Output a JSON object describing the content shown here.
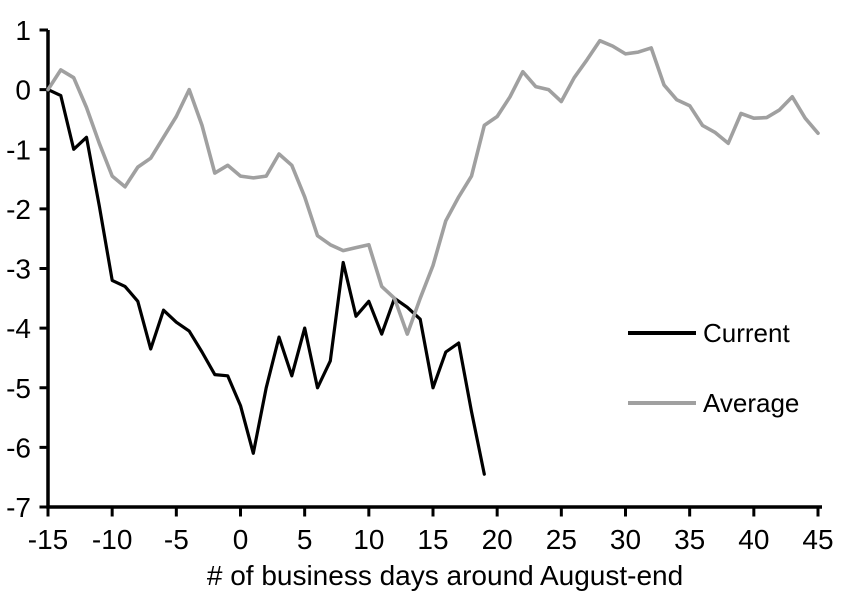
{
  "chart_data": {
    "type": "line",
    "title": "",
    "xlabel": "# of business days around August-end",
    "ylabel": "",
    "xlim": [
      -15,
      45
    ],
    "ylim": [
      -7,
      1
    ],
    "x_ticks": [
      -15,
      -10,
      -5,
      0,
      5,
      10,
      15,
      20,
      25,
      30,
      35,
      40,
      45
    ],
    "y_ticks": [
      1,
      0,
      -1,
      -2,
      -3,
      -4,
      -5,
      -6,
      -7
    ],
    "grid": false,
    "legend_position": "right-middle",
    "axis_color": "#000000",
    "series": [
      {
        "name": "Current",
        "color": "#000000",
        "x_start": -15,
        "x_step": 1,
        "values": [
          0,
          -0.1,
          -1,
          -0.8,
          -1.95,
          -3.2,
          -3.3,
          -3.55,
          -4.35,
          -3.7,
          -3.9,
          -4.05,
          -4.4,
          -4.78,
          -4.8,
          -5.3,
          -6.1,
          -5,
          -4.15,
          -4.8,
          -4,
          -5,
          -4.55,
          -2.9,
          -3.8,
          -3.55,
          -4.1,
          -3.5,
          -3.65,
          -3.85,
          -5,
          -4.4,
          -4.25,
          -5.4,
          -6.45
        ]
      },
      {
        "name": "Average",
        "color": "#a0a0a0",
        "x_start": -15,
        "x_step": 1,
        "values": [
          0,
          0.33,
          0.2,
          -0.3,
          -0.9,
          -1.45,
          -1.63,
          -1.3,
          -1.15,
          -0.8,
          -0.45,
          0,
          -0.6,
          -1.4,
          -1.27,
          -1.45,
          -1.48,
          -1.45,
          -1.08,
          -1.27,
          -1.8,
          -2.45,
          -2.6,
          -2.7,
          -2.65,
          -2.6,
          -3.3,
          -3.5,
          -4.1,
          -3.5,
          -2.95,
          -2.2,
          -1.8,
          -1.45,
          -0.6,
          -0.45,
          -0.12,
          0.3,
          0.05,
          0,
          -0.2,
          0.2,
          0.5,
          0.82,
          0.73,
          0.6,
          0.63,
          0.7,
          0.08,
          -0.17,
          -0.27,
          -0.6,
          -0.72,
          -0.9,
          -0.4,
          -0.48,
          -0.47,
          -0.34,
          -0.12,
          -0.48,
          -0.73
        ]
      }
    ]
  }
}
